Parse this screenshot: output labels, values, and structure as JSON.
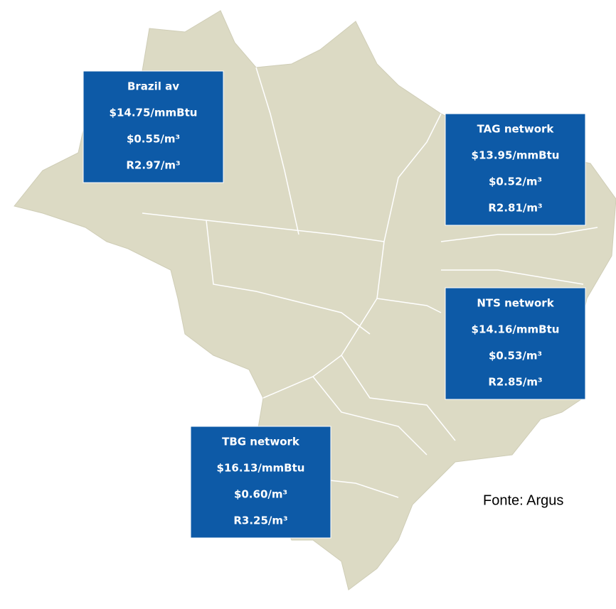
{
  "boxes": [
    {
      "lines": [
        "Brazil av",
        "$14.75/mmBtu",
        "$0.55/m³",
        "R2.97/m³"
      ]
    },
    {
      "lines": [
        "TAG network",
        "$13.95/mmBtu",
        "$0.52/m³",
        "R2.81/m³"
      ]
    },
    {
      "lines": [
        "NTS network",
        "$14.16/mmBtu",
        "$0.53/m³",
        "R2.85/m³"
      ]
    },
    {
      "lines": [
        "TBG network",
        "$16.13/mmBtu",
        "$0.60/m³",
        "R3.25/m³"
      ]
    }
  ],
  "source": "Fonte: Argus"
}
